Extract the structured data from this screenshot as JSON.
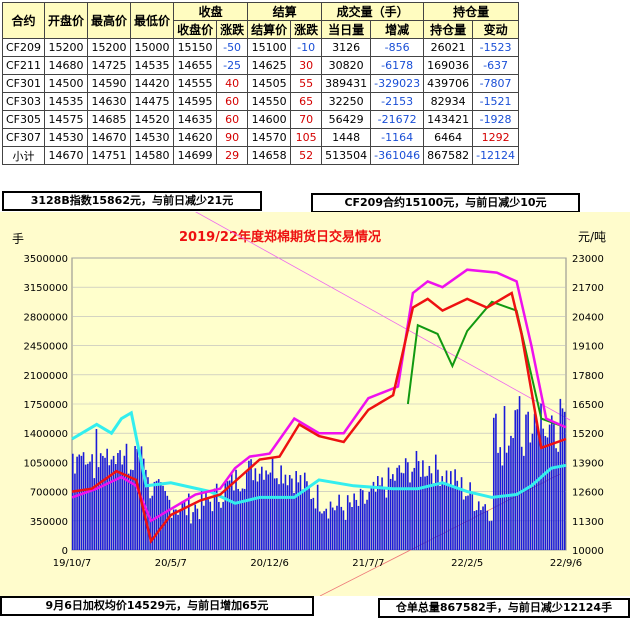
{
  "table": {
    "group_headers": {
      "close": "收盘",
      "settle": "结算",
      "volume": "成交量（手）",
      "oi": "持仓量"
    },
    "headers": [
      "合约",
      "开盘价",
      "最高价",
      "最低价",
      "收盘价",
      "涨跌",
      "结算价",
      "涨跌",
      "当日量",
      "增减",
      "持仓量",
      "变动"
    ],
    "rows": [
      [
        "CF209",
        "15200",
        "15200",
        "15000",
        "15150",
        "-50",
        "15100",
        "-10",
        "3126",
        "-856",
        "26021",
        "-1523"
      ],
      [
        "CF211",
        "14680",
        "14725",
        "14535",
        "14655",
        "-25",
        "14625",
        "30",
        "30820",
        "-6178",
        "169036",
        "-637"
      ],
      [
        "CF301",
        "14500",
        "14590",
        "14420",
        "14555",
        "40",
        "14505",
        "55",
        "389431",
        "-329023",
        "439706",
        "-7807"
      ],
      [
        "CF303",
        "14535",
        "14630",
        "14475",
        "14595",
        "60",
        "14550",
        "65",
        "32250",
        "-2153",
        "82934",
        "-1521"
      ],
      [
        "CF305",
        "14575",
        "14685",
        "14520",
        "14635",
        "60",
        "14600",
        "70",
        "56429",
        "-21672",
        "143421",
        "-1928"
      ],
      [
        "CF307",
        "14530",
        "14670",
        "14530",
        "14620",
        "90",
        "14570",
        "105",
        "1448",
        "-1164",
        "6464",
        "1292"
      ],
      [
        "小计",
        "14670",
        "14751",
        "14580",
        "14699",
        "29",
        "14658",
        "52",
        "513504",
        "-361046",
        "867582",
        "-12124"
      ]
    ]
  },
  "banners": {
    "index": "3128B指数15862元，与前日减少21元",
    "contract": "CF209合约15100元，与前日减少10元",
    "avg": "9月6日加权均价14529元，与前日增加65元",
    "warehouse": "仓单总量867582手，与前日减少12124手"
  },
  "chart": {
    "title": "2019/22年度郑棉期货日交易情况",
    "left_unit": "手",
    "right_unit": "元/吨",
    "left_ticks": [
      "3500000",
      "3150000",
      "2800000",
      "2450000",
      "2100000",
      "1750000",
      "1400000",
      "1050000",
      "700000",
      "350000",
      "0"
    ],
    "right_ticks": [
      "23000",
      "21700",
      "20400",
      "19100",
      "17800",
      "16500",
      "15200",
      "13900",
      "12600",
      "11300",
      "10000"
    ],
    "x_ticks": [
      "19/10/7",
      "20/5/7",
      "20/12/6",
      "21/7/7",
      "22/2/5",
      "22/9/6"
    ],
    "colors": {
      "volume": "#1a1ad8",
      "oi": "#33eeee",
      "close": "#ee1111",
      "settle": "#119911",
      "high": "#ee11ee"
    }
  }
}
